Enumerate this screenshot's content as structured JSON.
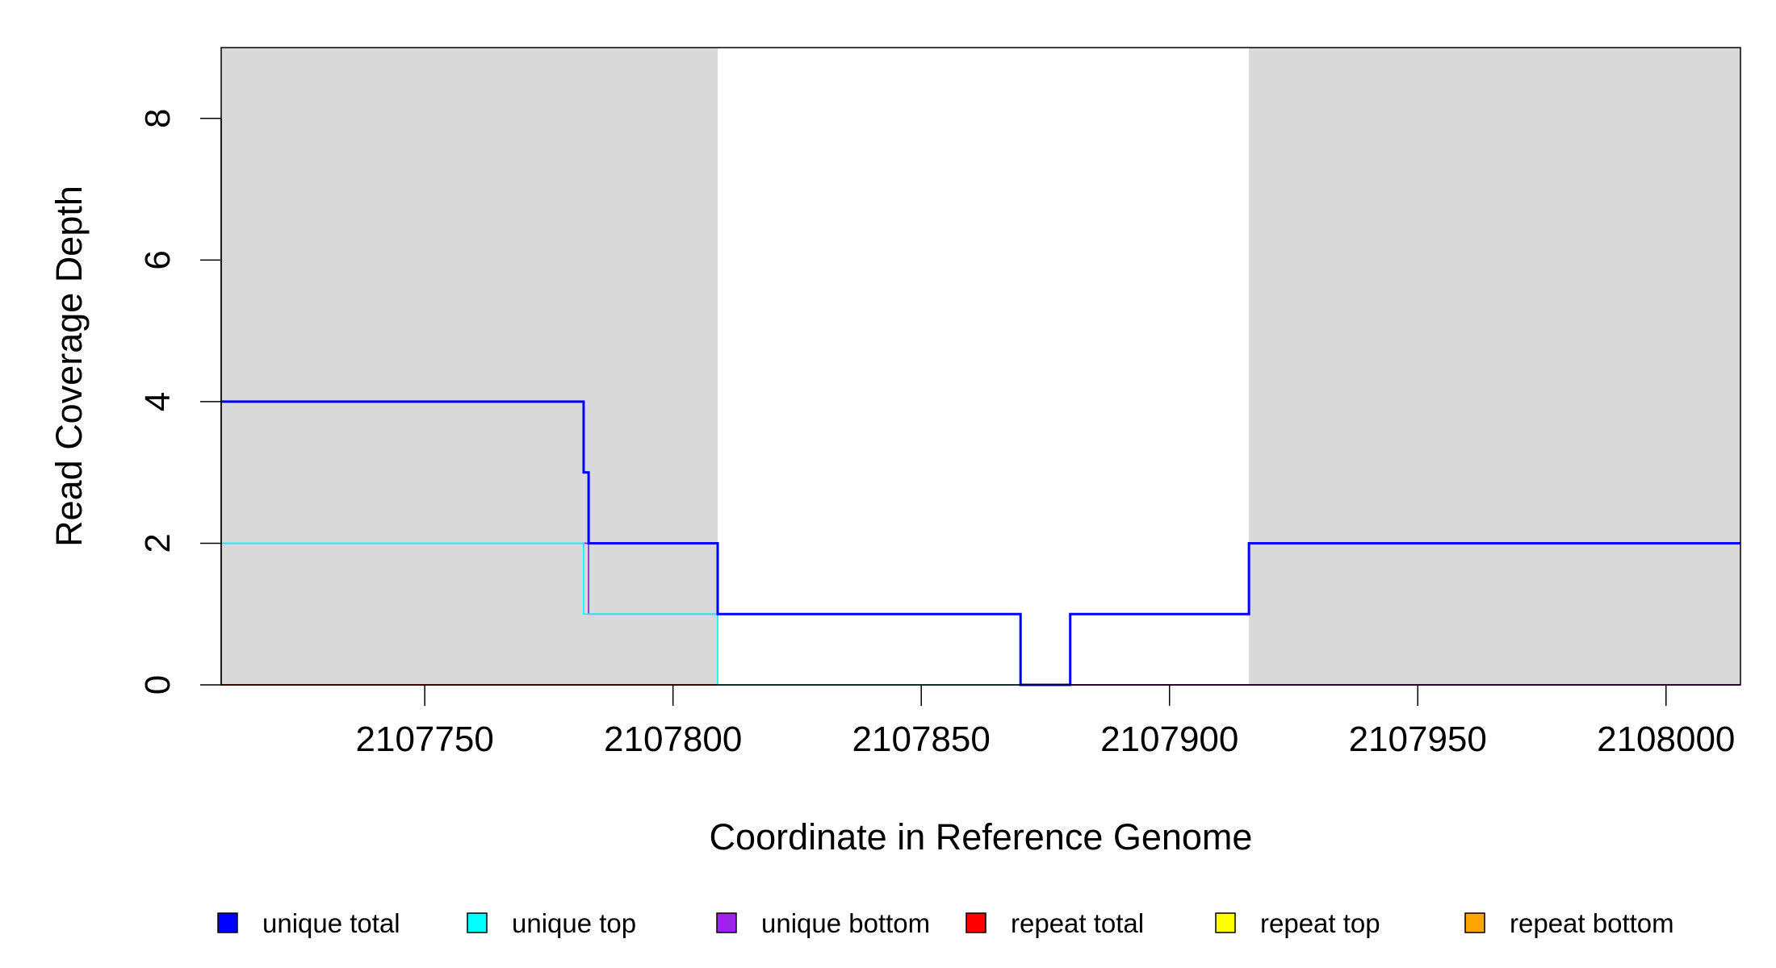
{
  "chart_data": {
    "type": "line",
    "xlabel": "Coordinate in Reference Genome",
    "ylabel": "Read Coverage Depth",
    "xlim": [
      2107709,
      2108015
    ],
    "ylim": [
      0,
      9
    ],
    "x_ticks": [
      2107750,
      2107800,
      2107850,
      2107900,
      2107950,
      2108000
    ],
    "x_tick_labels": [
      "2107750",
      "2107800",
      "2107850",
      "2107900",
      "2107950",
      "2108000"
    ],
    "y_ticks": [
      0,
      2,
      4,
      6,
      8
    ],
    "y_tick_labels": [
      "0",
      "2",
      "4",
      "6",
      "8"
    ],
    "shaded_regions": [
      [
        2107709,
        2107809
      ],
      [
        2107916,
        2108015
      ]
    ],
    "legend_position": "bottom",
    "series": [
      {
        "name": "unique total",
        "color": "#0000ff",
        "points": [
          [
            2107709,
            4
          ],
          [
            2107782,
            4
          ],
          [
            2107782,
            3
          ],
          [
            2107783,
            3
          ],
          [
            2107783,
            2
          ],
          [
            2107809,
            2
          ],
          [
            2107809,
            1
          ],
          [
            2107870,
            1
          ],
          [
            2107870,
            0
          ],
          [
            2107880,
            0
          ],
          [
            2107880,
            1
          ],
          [
            2107916,
            1
          ],
          [
            2107916,
            2
          ],
          [
            2108015,
            2
          ]
        ]
      },
      {
        "name": "unique top",
        "color": "#00ffff",
        "points": [
          [
            2107709,
            2
          ],
          [
            2107782,
            2
          ],
          [
            2107782,
            1
          ],
          [
            2107809,
            1
          ],
          [
            2107809,
            0
          ],
          [
            2107870,
            0
          ],
          [
            2107870,
            0
          ],
          [
            2107880,
            0
          ],
          [
            2107880,
            1
          ],
          [
            2107916,
            1
          ],
          [
            2107916,
            2
          ],
          [
            2108015,
            2
          ]
        ]
      },
      {
        "name": "unique bottom",
        "color": "#a020f0",
        "points": [
          [
            2107709,
            2
          ],
          [
            2107783,
            2
          ],
          [
            2107783,
            1
          ],
          [
            2107870,
            1
          ],
          [
            2107870,
            0
          ],
          [
            2107880,
            0
          ],
          [
            2108015,
            0
          ]
        ]
      },
      {
        "name": "repeat total",
        "color": "#ff0000",
        "points": [
          [
            2107709,
            0
          ],
          [
            2108015,
            0
          ]
        ]
      },
      {
        "name": "repeat top",
        "color": "#ffff00",
        "points": [
          [
            2107709,
            0
          ],
          [
            2108015,
            0
          ]
        ]
      },
      {
        "name": "repeat bottom",
        "color": "#ffa500",
        "points": [
          [
            2107709,
            0
          ],
          [
            2108015,
            0
          ]
        ]
      }
    ]
  }
}
